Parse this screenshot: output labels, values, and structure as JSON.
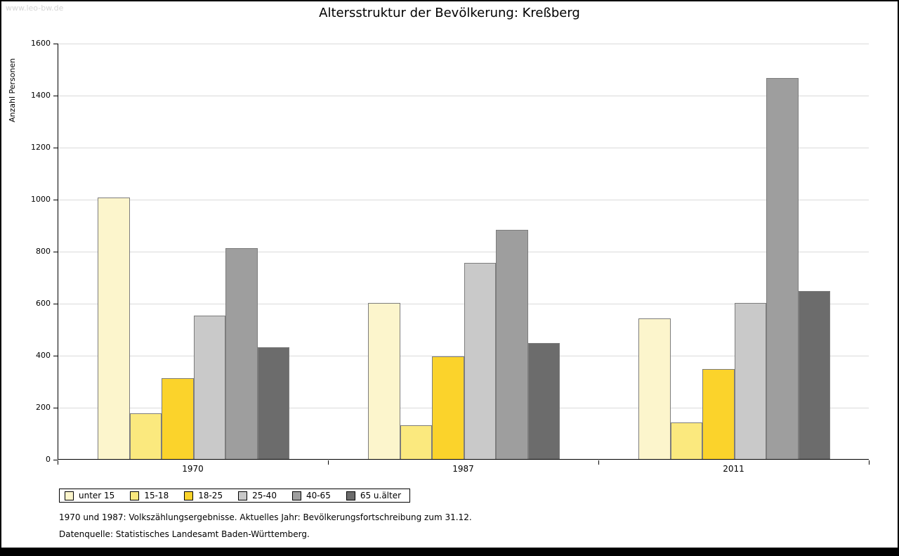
{
  "watermark": "www.leo-bw.de",
  "footnotes": [
    "1970 und 1987: Volkszählungsergebnisse. Aktuelles Jahr: Bevölkerungsfortschreibung zum 31.12.",
    "Datenquelle: Statistisches Landesamt Baden-Württemberg."
  ],
  "chart_data": {
    "type": "bar",
    "title": "Altersstruktur der Bevölkerung: Kreßberg",
    "ylabel": "Anzahl Personen",
    "ylim": [
      0,
      1600
    ],
    "ytick_step": 200,
    "grid": true,
    "legend_position": "bottom-left",
    "categories": [
      "1970",
      "1987",
      "2011"
    ],
    "series": [
      {
        "name": "unter 15",
        "color": "#FCF5CC",
        "values": [
          1005,
          600,
          540
        ]
      },
      {
        "name": "15-18",
        "color": "#FBE97E",
        "values": [
          175,
          130,
          140
        ]
      },
      {
        "name": "18-25",
        "color": "#FBD32B",
        "values": [
          310,
          395,
          345
        ]
      },
      {
        "name": "25-40",
        "color": "#C9C9C9",
        "values": [
          550,
          755,
          600
        ]
      },
      {
        "name": "40-65",
        "color": "#9E9E9E",
        "values": [
          810,
          880,
          1465
        ]
      },
      {
        "name": "65 u.älter",
        "color": "#6C6C6C",
        "values": [
          430,
          445,
          645
        ]
      }
    ]
  }
}
